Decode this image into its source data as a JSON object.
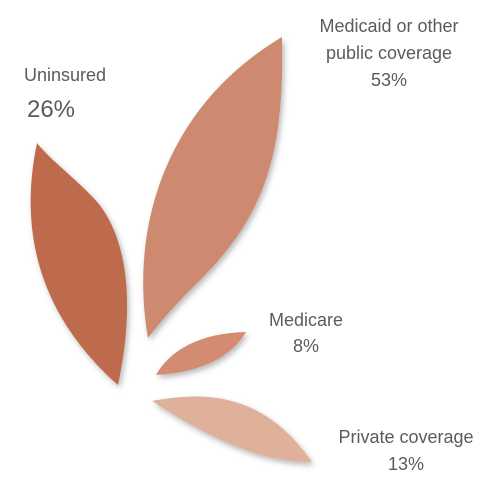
{
  "chart_data": {
    "type": "pie",
    "categories": [
      "Uninsured",
      "Medicaid or other public coverage",
      "Medicare",
      "Private coverage"
    ],
    "values": [
      26,
      53,
      8,
      13
    ],
    "value_suffix": "%",
    "colors": [
      "#be6b4d",
      "#cd8a6f",
      "#d38c72",
      "#e0b19a"
    ],
    "labels": {
      "uninsured": {
        "name": "Uninsured",
        "value": "26%"
      },
      "medicaid": {
        "name_line1": "Medicaid or other",
        "name_line2": "public coverage",
        "value": "53%"
      },
      "medicare": {
        "name": "Medicare",
        "value": "8%"
      },
      "private": {
        "name": "Private coverage",
        "value": "13%"
      }
    }
  }
}
